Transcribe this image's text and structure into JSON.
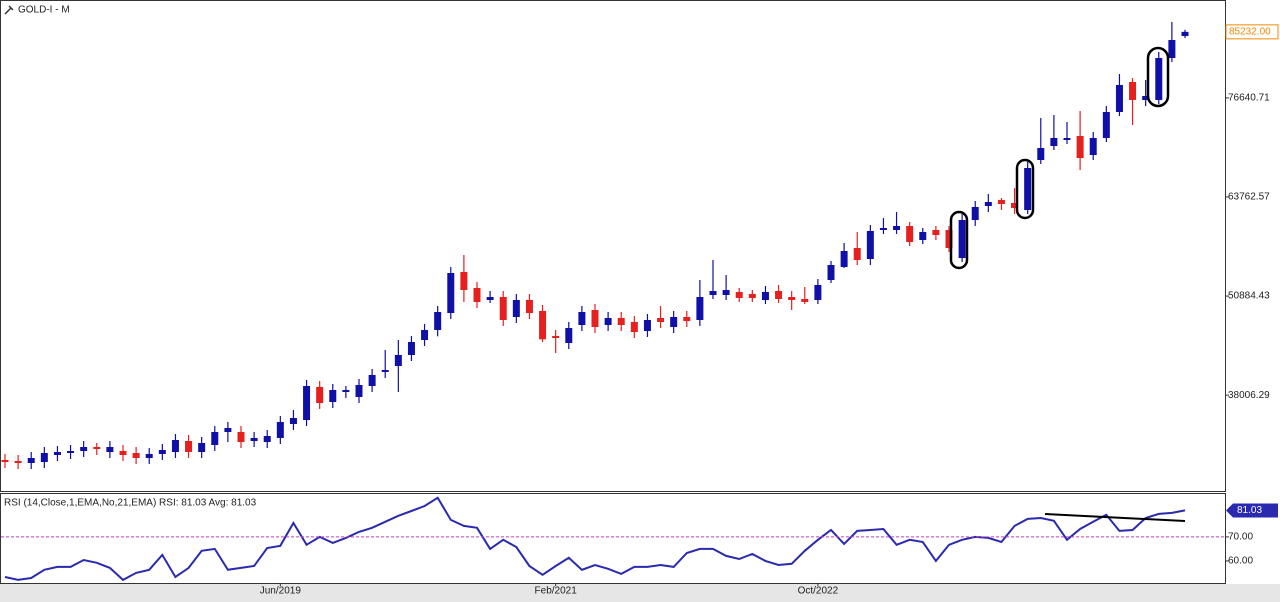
{
  "chart_data": {
    "type": "candlestick",
    "title": "GOLD-I - M",
    "categories": [
      null,
      null,
      null,
      null,
      null,
      null,
      null,
      null,
      null,
      null,
      null,
      null,
      null,
      null,
      null,
      null,
      null,
      null,
      null,
      null,
      null,
      "Jun/2019",
      null,
      null,
      null,
      null,
      null,
      null,
      null,
      null,
      null,
      null,
      null,
      null,
      null,
      null,
      null,
      null,
      null,
      null,
      null,
      null,
      "Feb/2021",
      null,
      null,
      null,
      null,
      null,
      null,
      null,
      null,
      null,
      null,
      null,
      null,
      null,
      null,
      null,
      null,
      null,
      null,
      null,
      "Oct/2022",
      null,
      null,
      null,
      null,
      null,
      null,
      null,
      null,
      null,
      null,
      null,
      null,
      null,
      null,
      null,
      null,
      null,
      null,
      null,
      null,
      null,
      null,
      null,
      null,
      null,
      null,
      null,
      null
    ],
    "open": [
      29573,
      29443,
      29183,
      29313,
      30223,
      30483,
      30743,
      31263,
      30613,
      30743,
      30483,
      29833,
      30353,
      30613,
      32043,
      30613,
      31523,
      33213,
      33213,
      32043,
      31913,
      32433,
      34253,
      34773,
      39063,
      37113,
      38413,
      37763,
      39193,
      41013,
      41793,
      43223,
      45173,
      46473,
      48683,
      54013,
      51933,
      50373,
      50763,
      48163,
      50373,
      48943,
      45693,
      44783,
      47123,
      49073,
      47123,
      48033,
      47513,
      46343,
      48033,
      46863,
      48163,
      47773,
      51023,
      51023,
      51413,
      51153,
      50373,
      51543,
      50763,
      50503,
      50373,
      52973,
      54663,
      57133,
      55703,
      59473,
      59473,
      59993,
      58173,
      59473,
      59473,
      55833,
      60773,
      62593,
      63373,
      62983,
      62073,
      68573,
      70393,
      71173,
      71693,
      69223,
      71433,
      74813,
      78713,
      76373,
      76373,
      81833,
      84693
    ],
    "high": [
      30353,
      30223,
      30613,
      31263,
      31393,
      31523,
      32043,
      31783,
      32043,
      31523,
      31263,
      31133,
      31653,
      32953,
      32823,
      32563,
      33993,
      34513,
      33993,
      33213,
      33473,
      35293,
      36073,
      39973,
      39843,
      39453,
      39193,
      40103,
      41403,
      43873,
      45173,
      45693,
      47253,
      49593,
      54663,
      56223,
      52713,
      51543,
      51543,
      51153,
      51153,
      49723,
      46473,
      47513,
      49593,
      49853,
      48813,
      48813,
      48293,
      48553,
      49593,
      48943,
      48943,
      52973,
      55573,
      53623,
      51933,
      51673,
      52193,
      52323,
      51543,
      52063,
      53103,
      55443,
      57783,
      59213,
      60123,
      61033,
      61813,
      60513,
      59733,
      59993,
      59993,
      61553,
      63243,
      64153,
      63633,
      64933,
      68313,
      74033,
      74423,
      73513,
      74943,
      72213,
      75593,
      79753,
      79233,
      78973,
      82613,
      86513,
      85500
    ],
    "low": [
      28533,
      28403,
      28403,
      28533,
      29443,
      29703,
      29963,
      30223,
      29833,
      29443,
      29053,
      29053,
      29573,
      29833,
      29833,
      29833,
      30743,
      31913,
      31133,
      31263,
      31133,
      31653,
      33473,
      33993,
      36203,
      36333,
      37633,
      36983,
      38413,
      40233,
      38413,
      42443,
      44393,
      45653,
      47903,
      50113,
      49333,
      49983,
      46993,
      47383,
      47903,
      44913,
      43483,
      44003,
      46343,
      46083,
      46343,
      46343,
      45433,
      45563,
      46733,
      46083,
      46863,
      46993,
      50503,
      50373,
      50113,
      50113,
      49853,
      49983,
      49073,
      49853,
      49853,
      52583,
      54533,
      54923,
      54923,
      58953,
      58953,
      57393,
      57653,
      58173,
      56613,
      55313,
      59993,
      61813,
      62073,
      61553,
      61553,
      68053,
      69873,
      70653,
      67273,
      68573,
      70913,
      74293,
      73123,
      75593,
      75853,
      81313,
      84433
    ],
    "close": [
      29313,
      29183,
      29833,
      30483,
      30613,
      30743,
      31263,
      31003,
      31263,
      30223,
      29833,
      30353,
      30873,
      32173,
      30613,
      31783,
      33213,
      33733,
      31913,
      32433,
      32693,
      34513,
      35033,
      39193,
      36983,
      38673,
      38673,
      39323,
      40623,
      41273,
      43223,
      44913,
      46473,
      48813,
      53883,
      51673,
      50113,
      50763,
      47773,
      50373,
      48683,
      45263,
      45433,
      46733,
      48813,
      46863,
      48033,
      47123,
      46213,
      47773,
      47513,
      48163,
      47643,
      50763,
      51543,
      51673,
      50633,
      50633,
      51413,
      50503,
      50373,
      50113,
      52323,
      54923,
      56743,
      55573,
      59343,
      59733,
      59993,
      57913,
      59213,
      58823,
      57133,
      60773,
      62463,
      63113,
      62853,
      62333,
      67533,
      70133,
      71433,
      71433,
      68833,
      71433,
      74813,
      78323,
      76373,
      76893,
      81833,
      84173,
      85232
    ],
    "up_color": "#1010a8",
    "down_color": "#e5201e",
    "ylim": [
      25543,
      89373
    ],
    "yticks": [
      38006.29,
      50884.43,
      63762.57,
      76640.71
    ],
    "last_price": {
      "value": 85232,
      "label": "85232.00"
    },
    "last_price_color": "#f08a00",
    "rsi": {
      "title": "RSI (14,Close,1,EMA,No,21,EMA) RSI: 81.03 Avg: 81.03",
      "color": "#2a2ab0",
      "values": [
        53.3,
        52.1,
        52.9,
        56.3,
        57.5,
        57.5,
        60.4,
        59.2,
        57.1,
        52.1,
        55.0,
        56.3,
        62.5,
        53.3,
        57.1,
        64.2,
        65.0,
        56.3,
        57.1,
        57.9,
        65.4,
        66.3,
        75.8,
        66.7,
        70.0,
        67.5,
        69.6,
        72.1,
        73.8,
        76.3,
        78.8,
        80.8,
        82.9,
        86.3,
        77.1,
        74.6,
        73.8,
        65.0,
        68.8,
        65.8,
        57.9,
        54.2,
        57.9,
        61.3,
        56.3,
        58.3,
        56.7,
        54.6,
        57.5,
        57.5,
        58.3,
        57.5,
        63.3,
        65.0,
        65.0,
        62.1,
        60.8,
        62.9,
        60.0,
        58.3,
        58.8,
        64.2,
        68.8,
        72.9,
        67.1,
        72.5,
        72.9,
        73.3,
        66.7,
        68.8,
        67.9,
        60.0,
        66.7,
        68.8,
        70.0,
        69.6,
        67.9,
        74.6,
        77.5,
        77.9,
        76.7,
        68.8,
        73.3,
        76.3,
        79.2,
        72.5,
        72.9,
        77.9,
        79.6,
        80.0,
        81.03
      ],
      "ylim": [
        50.8,
        88.3
      ],
      "yticks": [
        {
          "value": 60,
          "label": "60.00"
        },
        {
          "value": 70,
          "label": "70.00"
        }
      ],
      "level_color": "#c040c0"
    }
  }
}
